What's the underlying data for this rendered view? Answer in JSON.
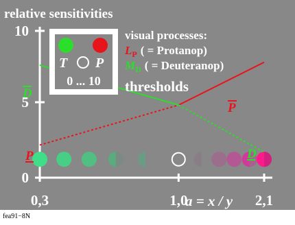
{
  "header": {
    "title": "relative sensitivities"
  },
  "footer": {
    "code": "fea91−8N"
  },
  "colors": {
    "background": "#888888",
    "protan": "#e8141c",
    "deutan": "#2bde2b",
    "white": "#ffffff",
    "black": "#000000",
    "magenta": "#ff1a8c",
    "text_red": "#e8141c",
    "text_green": "#2bde2b"
  },
  "legend": {
    "line1": "visual processes:",
    "protan_symbol": "L",
    "protan_sub": "P",
    "protan_text": "( = Protanop)",
    "deutan_symbol": "M",
    "deutan_sub": "D",
    "deutan_text": "( = Deuteranop)",
    "line4": "thresholds"
  },
  "inset": {
    "t_label": "T",
    "p_label": "P",
    "range_label": "0 ... 10"
  },
  "chart_data": {
    "type": "line",
    "x_axis": {
      "scale": "log",
      "ticks": [
        0.3,
        1.0,
        2.1
      ],
      "tick_labels": [
        "0,3",
        "1,0",
        "2,1"
      ],
      "xlim": [
        0.3,
        2.1
      ],
      "label": "a = x / y"
    },
    "y_axis": {
      "ticks": [
        0,
        5,
        10
      ],
      "tick_labels": [
        "0",
        "5",
        "10"
      ],
      "ylim": [
        0,
        10
      ]
    },
    "series": [
      {
        "name": "P",
        "label": "P",
        "label_bar": "P̄",
        "points": [
          [
            0.3,
            2.0
          ],
          [
            1.0,
            4.8
          ],
          [
            2.1,
            7.8
          ]
        ],
        "solid_from": 1.0
      },
      {
        "name": "D",
        "label": "D",
        "label_bar": "D̄",
        "points": [
          [
            0.3,
            7.6
          ],
          [
            1.0,
            4.8
          ],
          [
            2.1,
            1.5
          ]
        ],
        "solid_to": 1.0
      }
    ],
    "marker_row_y": 1.0,
    "markers": [
      {
        "x": 0.3,
        "fill": "#3fdf8a"
      },
      {
        "x": 0.37,
        "fill": "#47cf86"
      },
      {
        "x": 0.46,
        "fill": "#52bf82"
      },
      {
        "x": 0.58,
        "fill": "#5aab7e",
        "half_right": "#7a8a84"
      },
      {
        "x": 0.75,
        "fill": "#6a9c84",
        "half_right": "#888888"
      },
      {
        "x": 1.0,
        "fill": "none",
        "stroke": "#ffffff"
      },
      {
        "x": 1.22,
        "fill": "#8a7e86",
        "half_right": "#888888"
      },
      {
        "x": 1.42,
        "fill": "#9a6e8c"
      },
      {
        "x": 1.62,
        "fill": "#b45894"
      },
      {
        "x": 1.85,
        "fill": "#d03a9a",
        "half_right": "#a9608f"
      },
      {
        "x": 2.1,
        "fill": "#ff1a8c",
        "half_right": "#d22080"
      }
    ]
  }
}
